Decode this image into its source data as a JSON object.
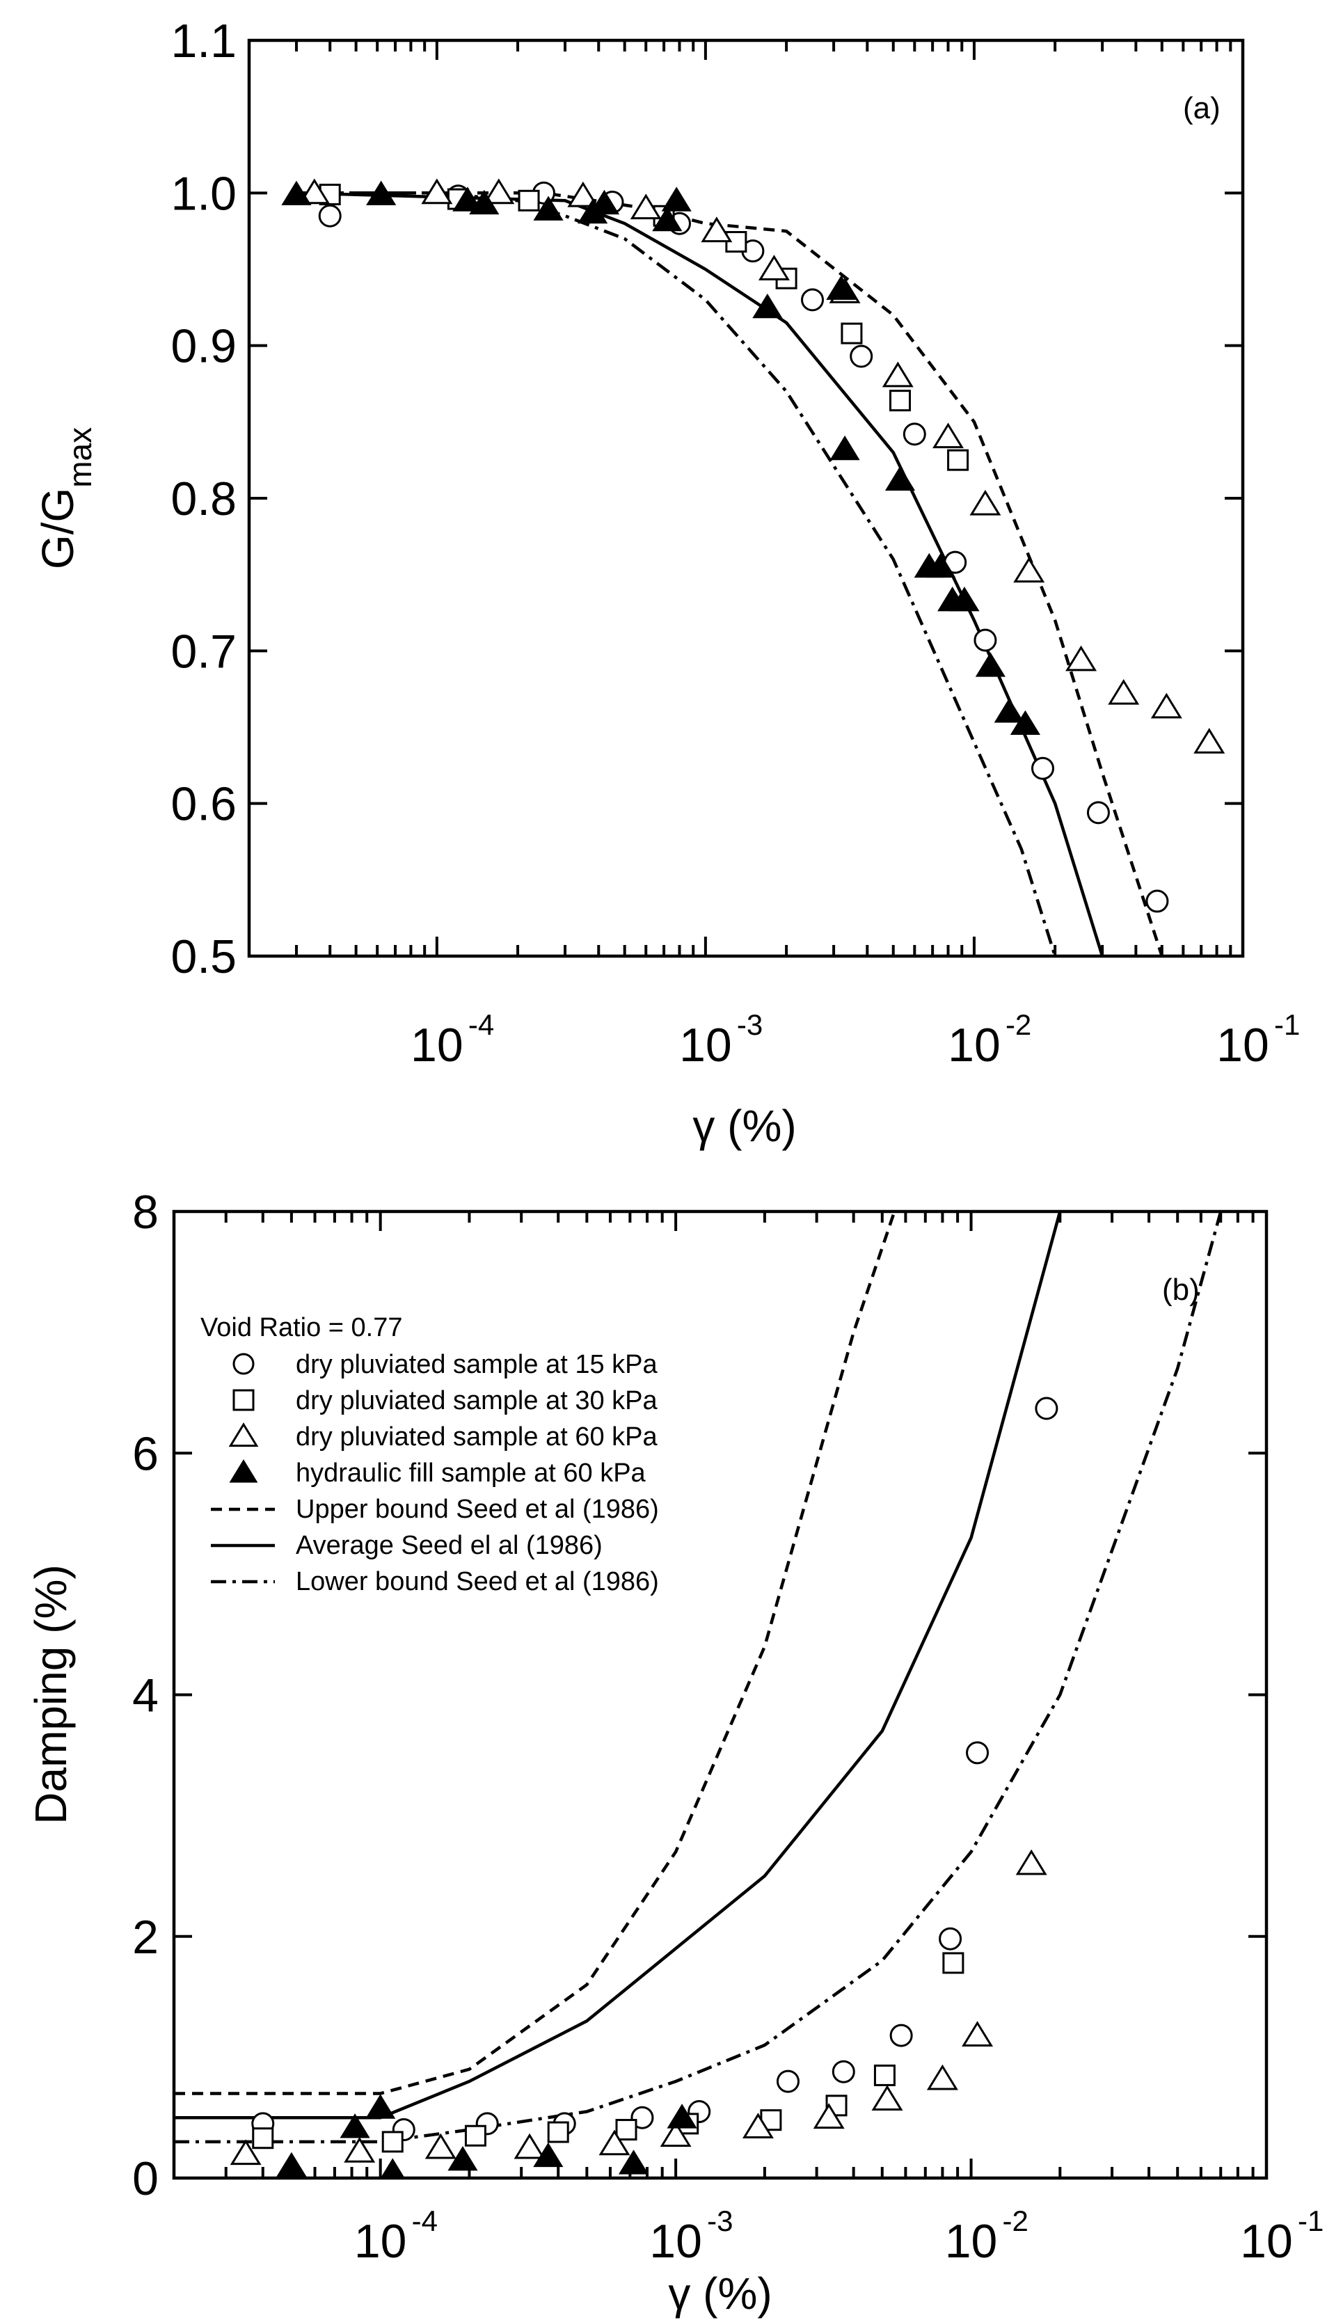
{
  "chart_data": [
    {
      "panel": "(a)",
      "type": "scatter",
      "xscale": "log",
      "xlim": [
        2e-05,
        0.1
      ],
      "ylim": [
        0.5,
        1.1
      ],
      "xlabel": "γ (%)",
      "ylabel_main": "G/G",
      "ylabel_sub": "max",
      "y_ticks": [
        "0.5",
        "0.6",
        "0.7",
        "0.8",
        "0.9",
        "1.0",
        "1.1"
      ],
      "y_tick_values": [
        0.5,
        0.6,
        0.7,
        0.8,
        0.9,
        1.0,
        1.1
      ],
      "x_ticks": [
        {
          "base": "10",
          "exp": "-4",
          "value": 0.0001
        },
        {
          "base": "10",
          "exp": "-3",
          "value": 0.001
        },
        {
          "base": "10",
          "exp": "-2",
          "value": 0.01
        },
        {
          "base": "10",
          "exp": "-1",
          "value": 0.1
        }
      ],
      "series": [
        {
          "name": "dry pluviated sample at 15 kPa",
          "marker": "circle-open",
          "x": [
            4e-05,
            0.00012,
            0.00025,
            0.00045,
            0.0008,
            0.0015,
            0.0025,
            0.0038,
            0.006,
            0.0085,
            0.011,
            0.018,
            0.029,
            0.048
          ],
          "y": [
            0.985,
            0.998,
            1.0,
            0.994,
            0.98,
            0.962,
            0.93,
            0.893,
            0.842,
            0.758,
            0.707,
            0.623,
            0.594,
            0.536
          ]
        },
        {
          "name": "dry pluviated sample at 30 kPa",
          "marker": "square-open",
          "x": [
            4e-05,
            0.00012,
            0.00022,
            0.0007,
            0.0013,
            0.002,
            0.0035,
            0.0053,
            0.0087
          ],
          "y": [
            0.999,
            0.996,
            0.995,
            0.985,
            0.968,
            0.944,
            0.908,
            0.864,
            0.825
          ]
        },
        {
          "name": "dry pluviated sample at 60 kPa",
          "marker": "triangle-open",
          "x": [
            3.5e-05,
            0.0001,
            0.00017,
            0.00035,
            0.0006,
            0.0011,
            0.0018,
            0.0033,
            0.0052,
            0.008,
            0.011,
            0.016,
            0.025,
            0.036,
            0.052,
            0.075
          ],
          "y": [
            1.0,
            1.0,
            1.0,
            0.998,
            0.99,
            0.975,
            0.95,
            0.935,
            0.88,
            0.84,
            0.796,
            0.752,
            0.694,
            0.672,
            0.663,
            0.64
          ]
        },
        {
          "name": "hydraulic fill sample at 60 kPa",
          "marker": "triangle-filled",
          "x": [
            3e-05,
            6.2e-05,
            0.00013,
            0.00015,
            0.00026,
            0.00038,
            0.00042,
            0.00072,
            0.00078,
            0.0017,
            0.0032,
            0.0033,
            0.0053,
            0.0068,
            0.0075,
            0.0083,
            0.0092,
            0.0115,
            0.0135,
            0.0155
          ],
          "y": [
            0.999,
            0.999,
            0.995,
            0.993,
            0.989,
            0.987,
            0.993,
            0.982,
            0.995,
            0.925,
            0.937,
            0.832,
            0.812,
            0.755,
            0.755,
            0.733,
            0.733,
            0.69,
            0.66,
            0.652
          ]
        },
        {
          "name": "Upper bound Seed et al (1986)",
          "style": "dashed",
          "x": [
            3e-05,
            0.00025,
            0.0006,
            0.001,
            0.002,
            0.005,
            0.01,
            0.02,
            0.03,
            0.05
          ],
          "y": [
            1.0,
            1.0,
            0.99,
            0.98,
            0.975,
            0.92,
            0.85,
            0.72,
            0.62,
            0.5
          ]
        },
        {
          "name": "Average Seed el al (1986)",
          "style": "solid",
          "x": [
            3e-05,
            0.0003,
            0.0005,
            0.001,
            0.002,
            0.005,
            0.01,
            0.02,
            0.03
          ],
          "y": [
            1.0,
            0.995,
            0.98,
            0.95,
            0.915,
            0.83,
            0.72,
            0.6,
            0.5
          ]
        },
        {
          "name": "Lower bound Seed et al (1986)",
          "style": "dashdot",
          "x": [
            3e-05,
            0.0001,
            0.0002,
            0.0003,
            0.0005,
            0.001,
            0.002,
            0.005,
            0.01,
            0.015,
            0.02
          ],
          "y": [
            1.0,
            1.0,
            0.995,
            0.985,
            0.97,
            0.93,
            0.87,
            0.76,
            0.64,
            0.57,
            0.5
          ]
        }
      ]
    },
    {
      "panel": "(b)",
      "type": "scatter",
      "xscale": "log",
      "xlim": [
        2e-05,
        0.1
      ],
      "ylim": [
        0,
        8
      ],
      "xlabel": "γ (%)",
      "ylabel": "Damping (%)",
      "y_ticks": [
        "0",
        "2",
        "4",
        "6",
        "8"
      ],
      "y_tick_values": [
        0,
        2,
        4,
        6,
        8
      ],
      "x_ticks": [
        {
          "base": "10",
          "exp": "-4",
          "value": 0.0001
        },
        {
          "base": "10",
          "exp": "-3",
          "value": 0.001
        },
        {
          "base": "10",
          "exp": "-2",
          "value": 0.01
        },
        {
          "base": "10",
          "exp": "-1",
          "value": 0.1
        }
      ],
      "legend_title": "Void Ratio = 0.77",
      "series": [
        {
          "name": "dry pluviated sample at 15 kPa",
          "marker": "circle-open",
          "x": [
            4e-05,
            0.00012,
            0.00023,
            0.00042,
            0.00077,
            0.0012,
            0.0024,
            0.0037,
            0.0058,
            0.0085,
            0.0105,
            0.018
          ],
          "y": [
            0.45,
            0.4,
            0.45,
            0.45,
            0.5,
            0.55,
            0.8,
            0.88,
            1.18,
            1.98,
            3.52,
            6.37
          ]
        },
        {
          "name": "dry pluviated sample at 30 kPa",
          "marker": "square-open",
          "x": [
            4e-05,
            0.00011,
            0.00021,
            0.0004,
            0.00068,
            0.0011,
            0.0021,
            0.0035,
            0.0051,
            0.0087
          ],
          "y": [
            0.33,
            0.3,
            0.35,
            0.38,
            0.4,
            0.45,
            0.48,
            0.6,
            0.85,
            1.78
          ]
        },
        {
          "name": "dry pluviated sample at 60 kPa",
          "marker": "triangle-open",
          "x": [
            3.5e-05,
            8.5e-05,
            0.00016,
            0.00032,
            0.00062,
            0.001,
            0.0019,
            0.0033,
            0.0052,
            0.008,
            0.0105,
            0.016
          ],
          "y": [
            0.2,
            0.22,
            0.25,
            0.25,
            0.28,
            0.35,
            0.42,
            0.5,
            0.65,
            0.82,
            1.18,
            2.6
          ]
        },
        {
          "name": "hydraulic fill sample at 60 kPa",
          "marker": "triangle-filled",
          "x": [
            5e-05,
            8.2e-05,
            0.0001,
            0.00011,
            0.00019,
            0.00037,
            0.00072,
            0.00105
          ],
          "y": [
            0.1,
            0.42,
            0.58,
            0.05,
            0.15,
            0.18,
            0.12,
            0.5
          ]
        },
        {
          "name": "Upper bound Seed et al (1986)",
          "style": "dashed",
          "x": [
            2e-05,
            0.0001,
            0.0002,
            0.0005,
            0.001,
            0.002,
            0.004,
            0.0055
          ],
          "y": [
            0.7,
            0.7,
            0.9,
            1.6,
            2.7,
            4.4,
            7.0,
            8.0
          ]
        },
        {
          "name": "Average Seed el al (1986)",
          "style": "solid",
          "x": [
            2e-05,
            0.0001,
            0.0002,
            0.0005,
            0.001,
            0.002,
            0.005,
            0.01,
            0.02
          ],
          "y": [
            0.5,
            0.5,
            0.8,
            1.3,
            1.9,
            2.5,
            3.7,
            5.3,
            8.0
          ]
        },
        {
          "name": "Lower bound Seed et al (1986)",
          "style": "dashdot",
          "x": [
            2e-05,
            0.0001,
            0.0002,
            0.0005,
            0.001,
            0.002,
            0.005,
            0.01,
            0.02,
            0.05,
            0.07
          ],
          "y": [
            0.3,
            0.3,
            0.4,
            0.55,
            0.8,
            1.1,
            1.8,
            2.7,
            4.0,
            6.7,
            8.0
          ]
        }
      ]
    }
  ]
}
